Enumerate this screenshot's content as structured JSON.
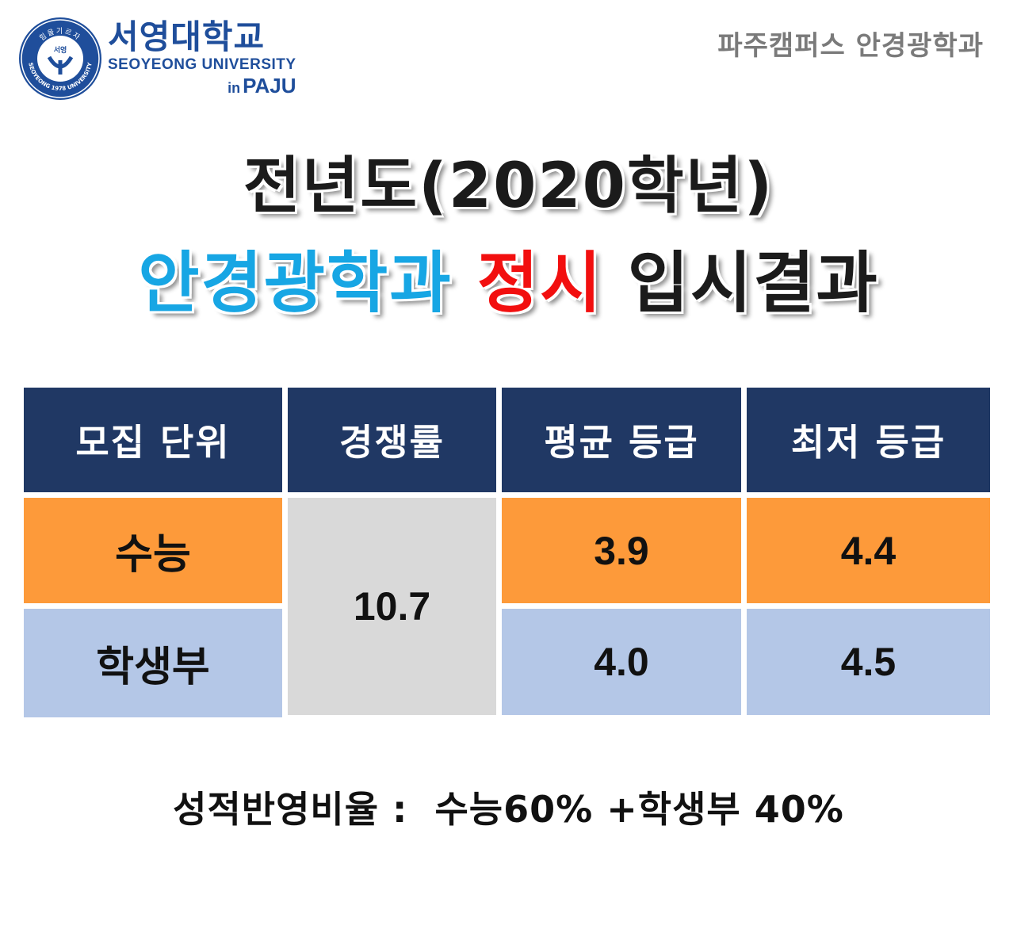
{
  "header": {
    "logo_korean": "서영대학교",
    "logo_english": "SEOYEONG UNIVERSITY",
    "logo_in": "in",
    "logo_paju": "PAJU",
    "seal_top_text": "힘을기르자",
    "seal_center_text": "서영",
    "seal_bottom_text": "SEOYEONG 1978 UNIVERSITY",
    "department": "파주캠퍼스 안경광학과"
  },
  "title": {
    "line1": "전년도(2020학년)",
    "line2_part1": "안경광학과",
    "line2_part2": "정시",
    "line2_part3": "입시결과"
  },
  "table": {
    "headers": [
      "모집 단위",
      "경쟁률",
      "평균 등급",
      "최저 등급"
    ],
    "rows": [
      {
        "unit": "수능",
        "avg": "3.9",
        "min": "4.4"
      },
      {
        "unit": "학생부",
        "avg": "4.0",
        "min": "4.5"
      }
    ],
    "competition_rate": "10.7"
  },
  "footer": {
    "ratio_text": "성적반영비율 :  수능60% +학생부 40%"
  },
  "colors": {
    "header_bg": "#203864",
    "suneung_row": "#fd9a3a",
    "school_record_row": "#b4c7e7",
    "competition_cell": "#d9d9d9",
    "title_blue": "#17a6e4",
    "title_red": "#f20f0f",
    "logo_blue": "#1f4e9b"
  }
}
